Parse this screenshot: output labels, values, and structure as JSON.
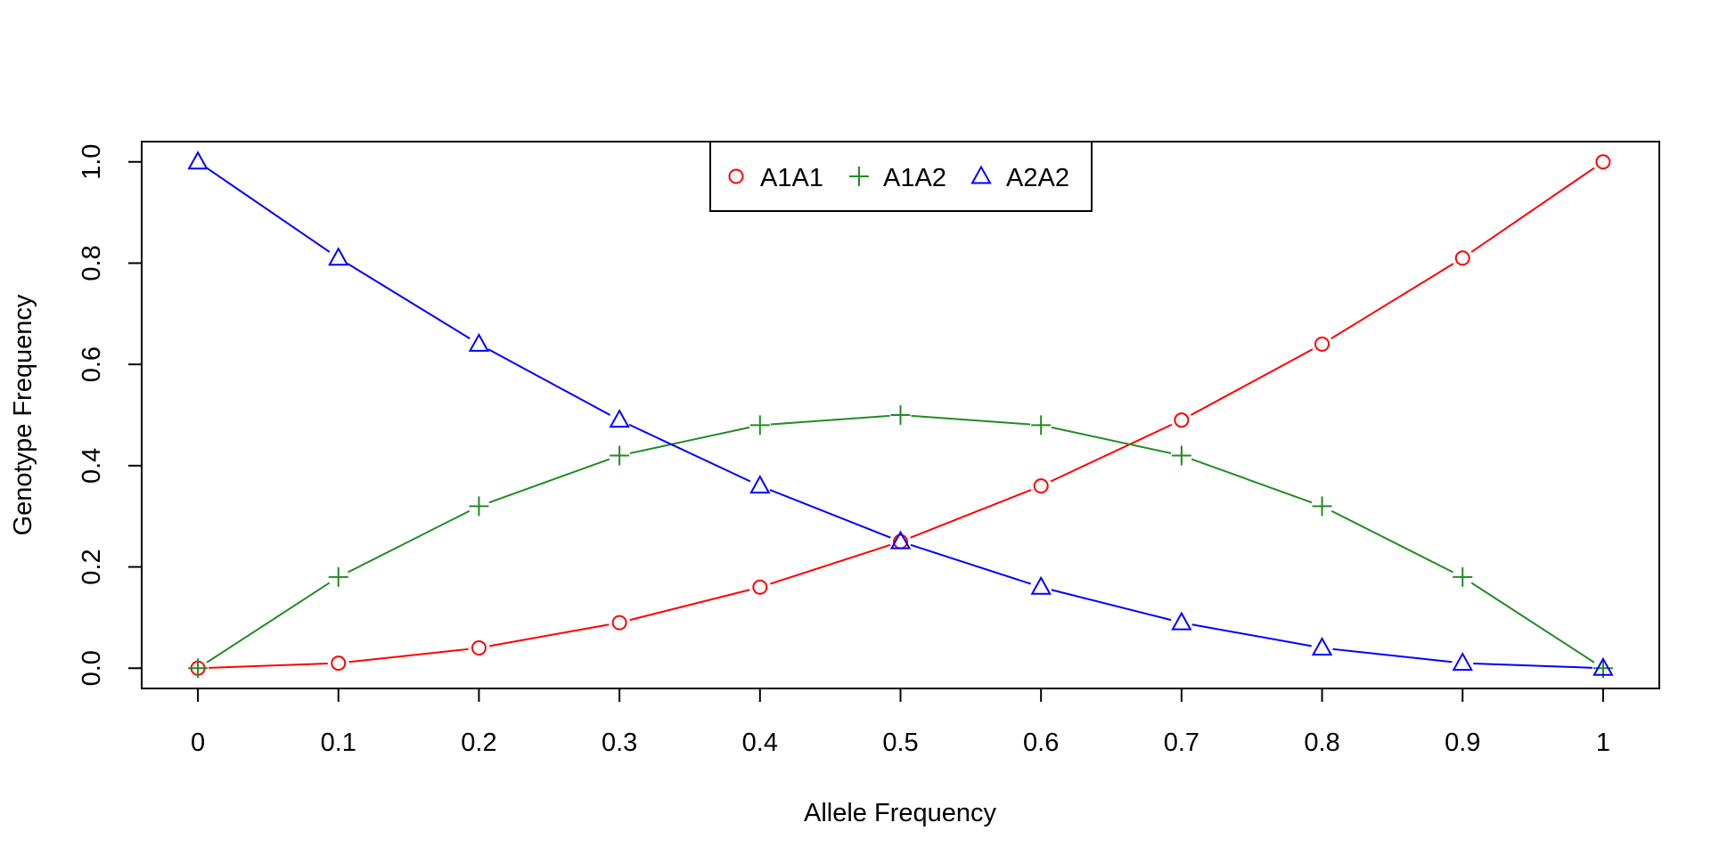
{
  "chart_data": {
    "type": "line",
    "title": "",
    "xlabel": "Allele Frequency",
    "ylabel": "Genotype Frequency",
    "x": [
      0,
      0.1,
      0.2,
      0.3,
      0.4,
      0.5,
      0.6,
      0.7,
      0.8,
      0.9,
      1
    ],
    "x_tick_labels": [
      "0",
      "0.1",
      "0.2",
      "0.3",
      "0.4",
      "0.5",
      "0.6",
      "0.7",
      "0.8",
      "0.9",
      "1"
    ],
    "y_ticks": [
      0,
      0.2,
      0.4,
      0.6,
      0.8,
      1
    ],
    "y_tick_labels": [
      "0.0",
      "0.2",
      "0.4",
      "0.6",
      "0.8",
      "1.0"
    ],
    "xlim": [
      -0.04,
      1.04
    ],
    "ylim": [
      -0.04,
      1.04
    ],
    "grid": false,
    "legend_position": "top-center",
    "series": [
      {
        "name": "A1A1",
        "color": "#FF0000",
        "marker": "circle",
        "values": [
          0,
          0.01,
          0.04,
          0.09,
          0.16,
          0.25,
          0.36,
          0.49,
          0.64,
          0.81,
          1
        ]
      },
      {
        "name": "A1A2",
        "color": "#228B22",
        "marker": "plus",
        "values": [
          0,
          0.18,
          0.32,
          0.42,
          0.48,
          0.5,
          0.48,
          0.42,
          0.32,
          0.18,
          0
        ]
      },
      {
        "name": "A2A2",
        "color": "#0000FF",
        "marker": "triangle",
        "values": [
          1,
          0.81,
          0.64,
          0.49,
          0.36,
          0.25,
          0.16,
          0.09,
          0.04,
          0.01,
          0
        ]
      }
    ]
  }
}
